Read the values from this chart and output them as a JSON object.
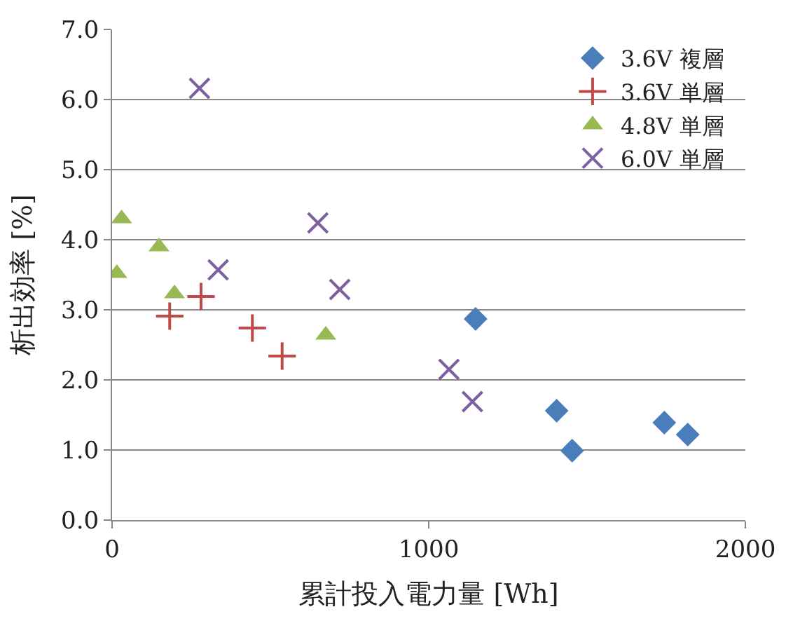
{
  "chart_data": {
    "type": "scatter",
    "xlabel": "累計投入電力量 [Wh]",
    "ylabel": "析出効率 [%]",
    "xlim": [
      0,
      2000
    ],
    "xticks": [
      0,
      1000,
      2000
    ],
    "ylim": [
      0,
      7
    ],
    "yticks": [
      {
        "value": 0,
        "label": "0.0"
      },
      {
        "value": 1,
        "label": "1.0"
      },
      {
        "value": 2,
        "label": "2.0"
      },
      {
        "value": 3,
        "label": "3.0"
      },
      {
        "value": 4,
        "label": "4.0"
      },
      {
        "value": 5,
        "label": "5.0"
      },
      {
        "value": 6,
        "label": "6.0"
      },
      {
        "value": 7,
        "label": "7.0"
      }
    ],
    "grid": "y",
    "legend": "top right",
    "series": [
      {
        "name": "3.6V 複層",
        "color": "#4a7ebb",
        "marker": "diamond",
        "x": [
          1148,
          1404,
          1453,
          1744,
          1818
        ],
        "values": [
          2.87,
          1.56,
          0.99,
          1.39,
          1.22
        ]
      },
      {
        "name": "3.6V 単層",
        "color": "#be4b48",
        "marker": "cross",
        "x": [
          182,
          281,
          443,
          537
        ],
        "values": [
          2.91,
          3.19,
          2.74,
          2.34
        ]
      },
      {
        "name": "4.8V 単層",
        "color": "#98b954",
        "marker": "triangle",
        "x": [
          30,
          15,
          148,
          197,
          675
        ],
        "values": [
          4.3,
          3.52,
          3.9,
          3.23,
          2.64
        ]
      },
      {
        "name": "6.0V 単層",
        "color": "#7d60a0",
        "marker": "x",
        "x": [
          276,
          335,
          650,
          719,
          1064,
          1138
        ],
        "values": [
          6.16,
          3.57,
          4.24,
          3.29,
          2.15,
          1.69
        ]
      }
    ]
  }
}
